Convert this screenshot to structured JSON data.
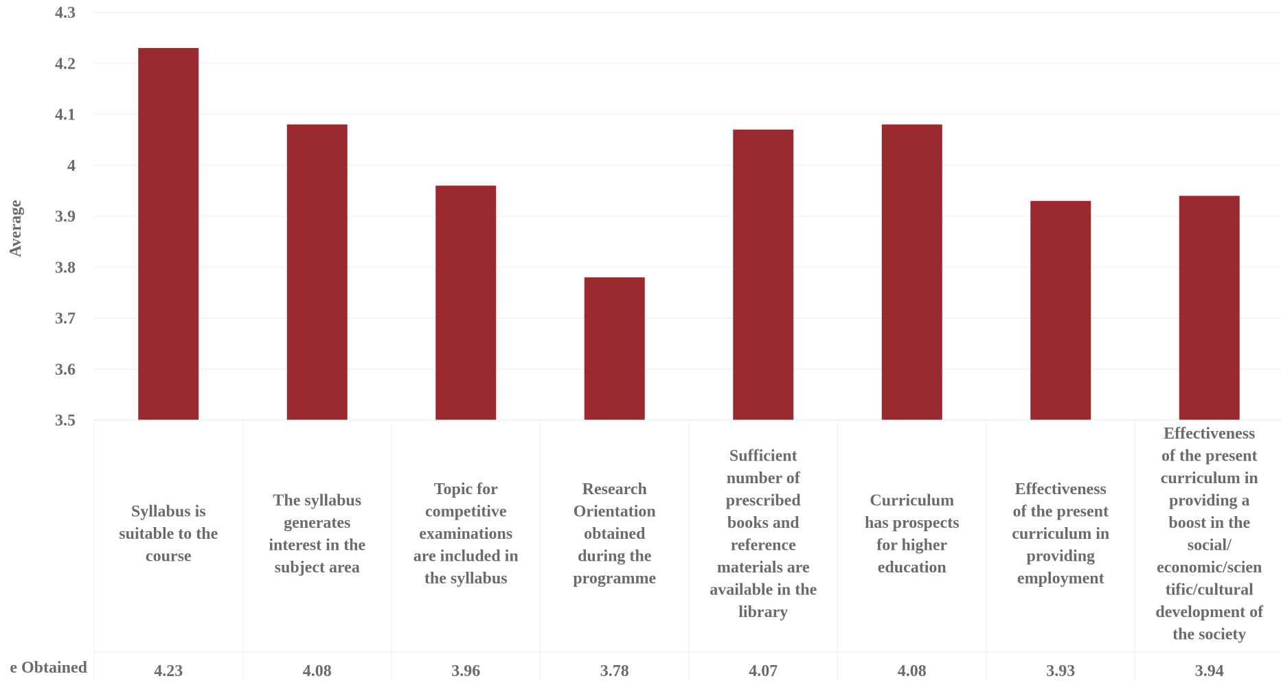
{
  "chart_data": {
    "type": "bar",
    "ylabel": "Average",
    "ylim": [
      3.5,
      4.3
    ],
    "yticks": [
      "3.5",
      "3.6",
      "3.7",
      "3.8",
      "3.9",
      "4",
      "4.1",
      "4.2",
      "4.3"
    ],
    "grid": true,
    "bar_color": "#9b2a30",
    "table_row_label": "e Obtained",
    "categories": [
      [
        "Syllabus is",
        "suitable to the",
        "course"
      ],
      [
        "The syllabus",
        "generates",
        "interest in the",
        "subject area"
      ],
      [
        "Topic for",
        "competitive",
        "examinations",
        "are included in",
        "the syllabus"
      ],
      [
        "Research",
        "Orientation",
        "obtained",
        "during the",
        "programme"
      ],
      [
        "Sufficient",
        "number of",
        "prescribed",
        "books and",
        "reference",
        "materials are",
        "available in the",
        "library"
      ],
      [
        "Curriculum",
        "has prospects",
        "for higher",
        "education"
      ],
      [
        "Effectiveness",
        "of the present",
        "curriculum in",
        "providing",
        "employment"
      ],
      [
        "Effectiveness",
        "of the present",
        "curriculum in",
        "providing a",
        "boost in the",
        "social/",
        "economic/scien",
        "tific/cultural",
        "development of",
        "the society"
      ]
    ],
    "values": [
      4.23,
      4.08,
      3.96,
      3.78,
      4.07,
      4.08,
      3.93,
      3.94
    ],
    "value_labels": [
      "4.23",
      "4.08",
      "3.96",
      "3.78",
      "4.07",
      "4.08",
      "3.93",
      "3.94"
    ]
  }
}
